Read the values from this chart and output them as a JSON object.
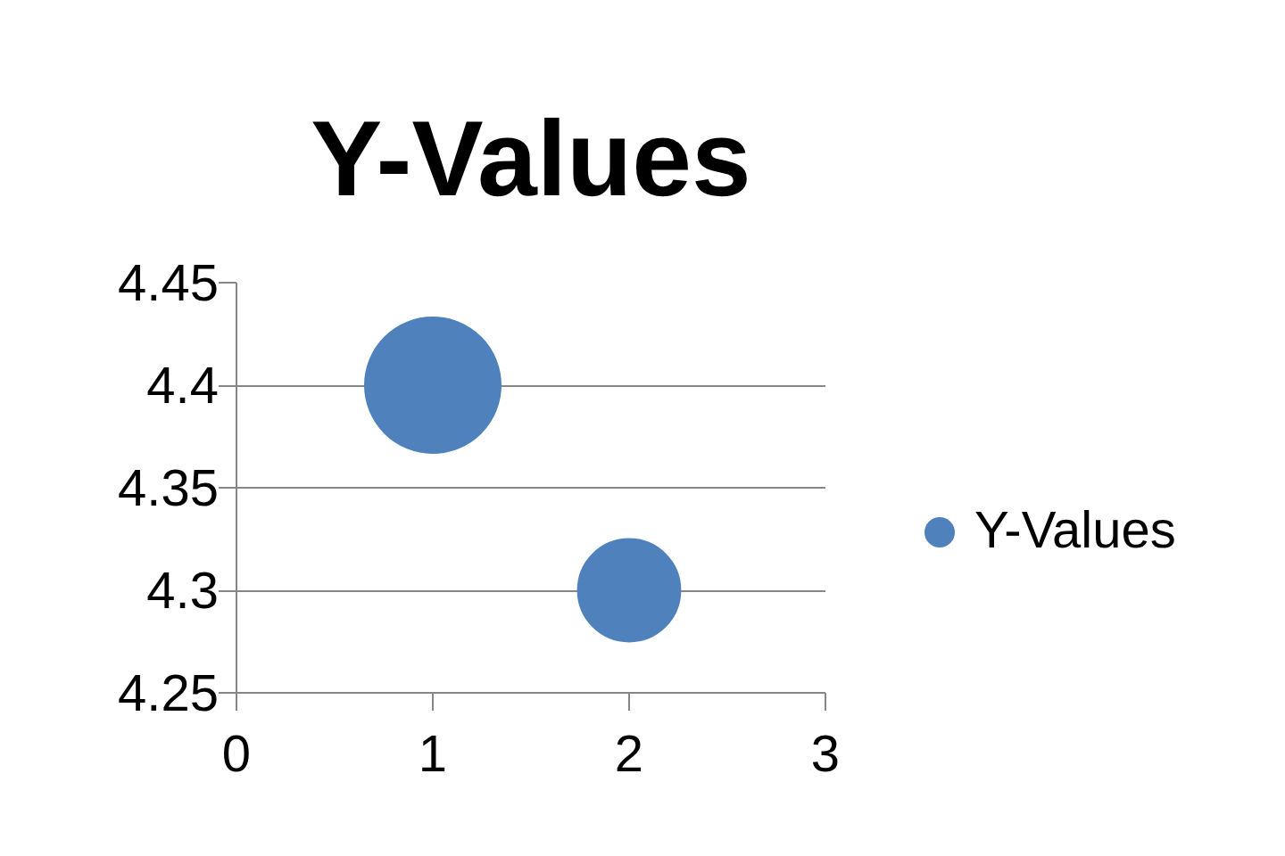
{
  "chart_data": {
    "type": "bubble",
    "title": "Y-Values",
    "x": [
      1,
      2
    ],
    "series": [
      {
        "name": "Y-Values",
        "color": "#4f81bd",
        "values": [
          4.4,
          4.3
        ],
        "sizes": [
          1,
          0.57
        ]
      }
    ],
    "xlim": [
      0,
      3
    ],
    "xticks": [
      0,
      1,
      2,
      3
    ],
    "ylim": [
      4.25,
      4.45
    ],
    "yticks": [
      4.25,
      4.3,
      4.35,
      4.4,
      4.45
    ],
    "grid": "y",
    "legend": "right",
    "marker": "circle"
  }
}
